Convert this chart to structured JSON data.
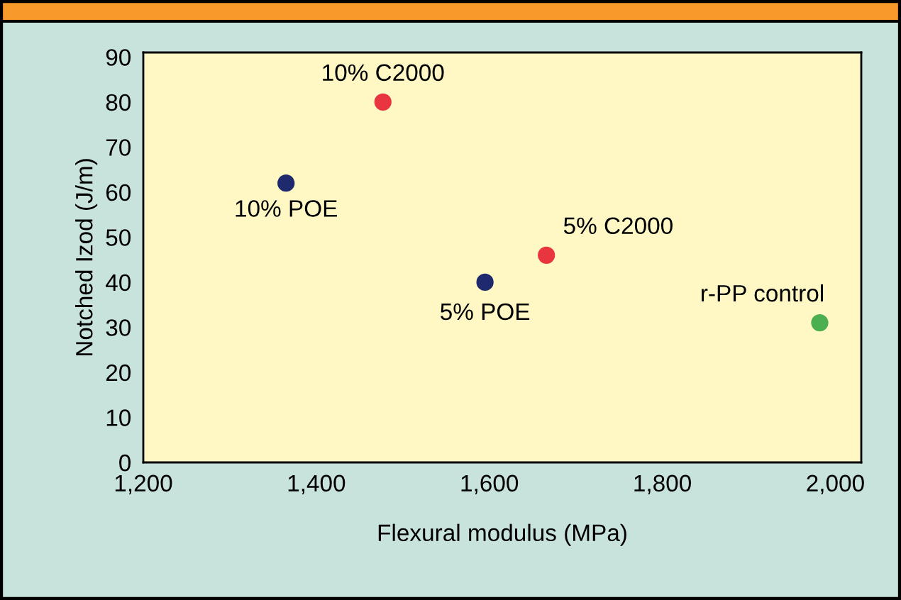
{
  "chart_data": {
    "type": "scatter",
    "xlabel": "Flexural modulus (MPa)",
    "ylabel": "Notched Izod (J/m)",
    "series": [
      {
        "color": "#e8353f",
        "x": [
          1477,
          1666
        ],
        "values": [
          80,
          46
        ]
      },
      {
        "color": "#1f2a6e",
        "x": [
          1365,
          1595
        ],
        "values": [
          62,
          40
        ]
      },
      {
        "color": "#4caf50",
        "x": [
          1982
        ],
        "values": [
          31
        ]
      }
    ],
    "annotations": [
      {
        "text": "10% C2000",
        "x": 1477,
        "y": 80
      },
      {
        "text": "10% POE",
        "x": 1365,
        "y": 62
      },
      {
        "text": "5% C2000",
        "x": 1666,
        "y": 46
      },
      {
        "text": "5% POE",
        "x": 1595,
        "y": 40
      },
      {
        "text": "r-PP control",
        "x": 1982,
        "y": 31
      }
    ],
    "xlim": [
      1200,
      2030
    ],
    "ylim": [
      0,
      91
    ],
    "xticks": [
      {
        "value": 1200,
        "label": "1,200"
      },
      {
        "value": 1400,
        "label": "1,400"
      },
      {
        "value": 1600,
        "label": "1,600"
      },
      {
        "value": 1800,
        "label": "1,800"
      },
      {
        "value": 2000,
        "label": "2,000"
      }
    ],
    "yticks": [
      0,
      10,
      20,
      30,
      40,
      50,
      60,
      70,
      80,
      90
    ],
    "grid": false,
    "marker": "circle"
  }
}
